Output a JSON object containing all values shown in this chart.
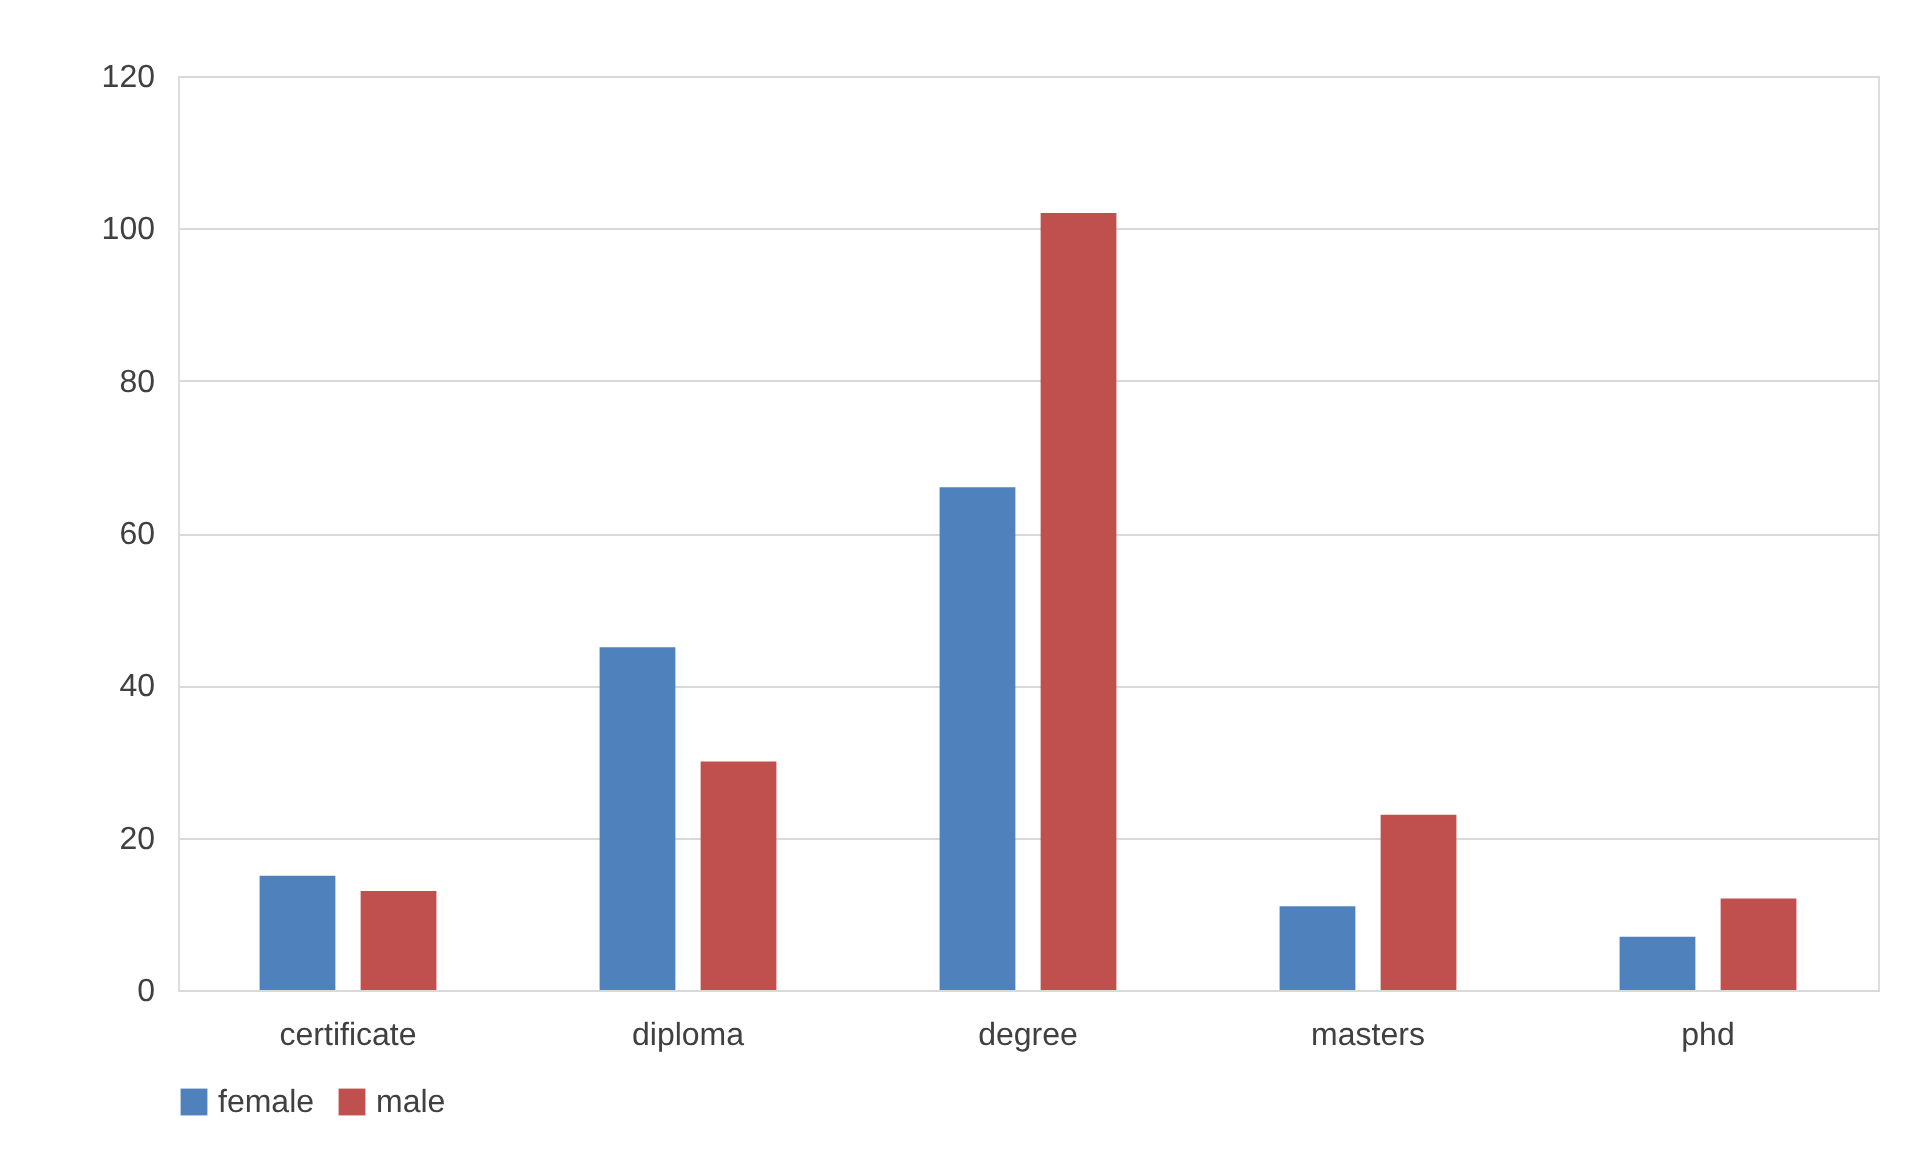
{
  "chart_data": {
    "type": "bar",
    "categories": [
      "certificate",
      "diploma",
      "degree",
      "masters",
      "phd"
    ],
    "series": [
      {
        "name": "female",
        "color": "#4f81bd",
        "values": [
          15,
          45,
          66,
          11,
          7
        ]
      },
      {
        "name": "male",
        "color": "#c0504d",
        "values": [
          13,
          30,
          102,
          23,
          12
        ]
      }
    ],
    "ylim": [
      0,
      120
    ],
    "yticks": [
      0,
      20,
      40,
      60,
      80,
      100,
      120
    ],
    "grid": "y",
    "legend": "bottom"
  }
}
